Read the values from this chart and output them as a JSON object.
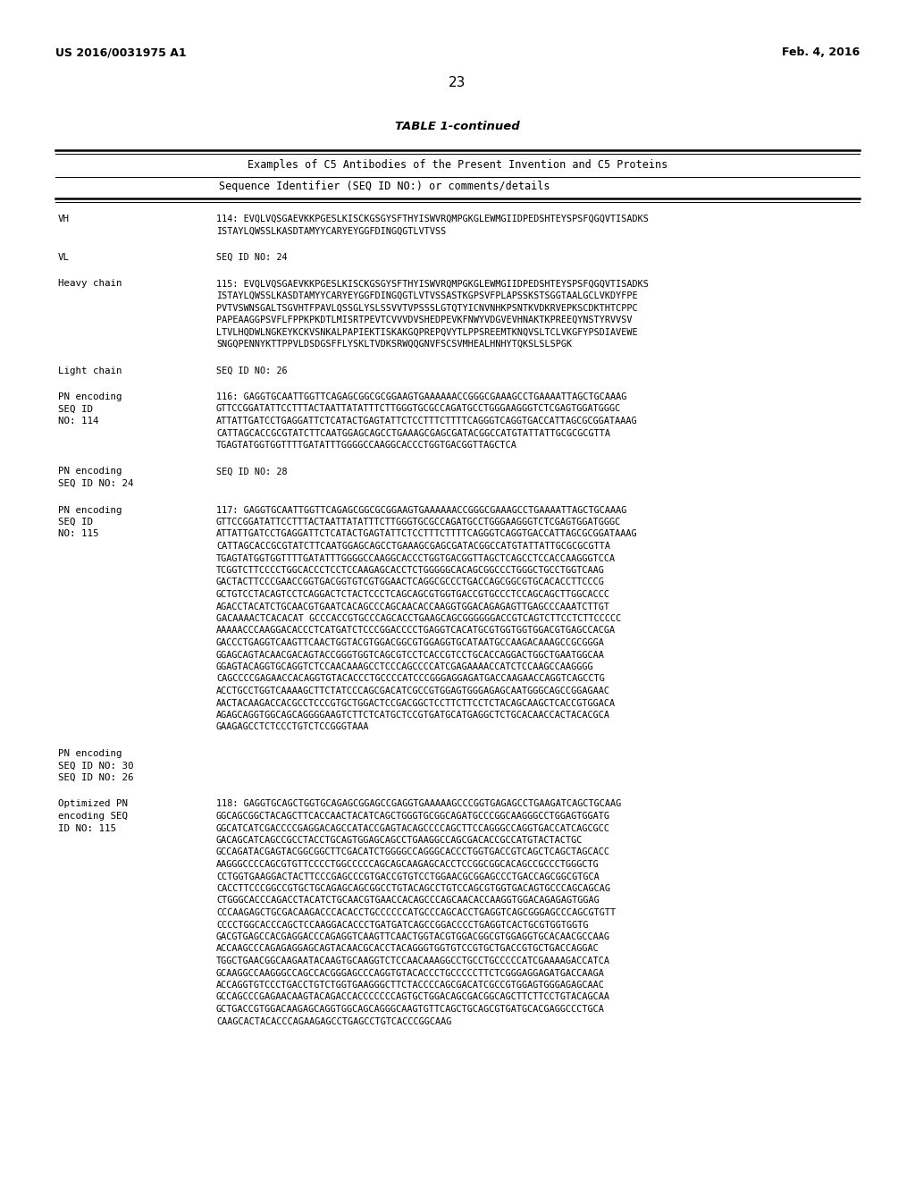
{
  "background_color": "#ffffff",
  "header_left": "US 2016/0031975 A1",
  "header_right": "Feb. 4, 2016",
  "page_number": "23",
  "table_title": "TABLE 1-continued",
  "table_subtitle": "Examples of C5 Antibodies of the Present Invention and C5 Proteins",
  "table_col_header": "Sequence Identifier (SEQ ID NO:) or comments/details",
  "blocks": [
    {
      "label": "VH",
      "content": "114: EVQLVQSGAEVKKPGESLKISCKGSGYSFTHYISWVRQMPGKGLEWMGIIDPEDSHTEYSPSFQGQVTISADKS\nISTAYLQWSSLKASDTAMYYCARYEYGGFDINGQGTLVTVSS"
    },
    {
      "label": "VL",
      "content": "SEQ ID NO: 24"
    },
    {
      "label": "Heavy chain",
      "content": "115: EVQLVQSGAEVKKPGESLKISCKGSGYSFTHYISWVRQMPGKGLEWMGIIDPEDSHTEYSPSFQGQVTISADKS\nISTAYLQWSSLKASDTAMYYCARYEYGGFDINGQGTLVTVSSASTKGPSVFPLAPSSKSTSGGTAALGCLVKDYFPE\nPVTVSWNSGALTSGVHTFPAVLQSSGLYSLSSVVTVPSSSLGTQTYICNVNHKPSNTKVDKRVEPKSCDKTHTCPPC\nPAPEAAGGPSVFLFPPKPKDTLMISRTPEVTCVVVDVSHEDPEVKFNWYVDGVEVHNAKTKPREEQYNSTYRVVSV\nLTVLHQDWLNGKEYKCKVSNKALPAPIEKTISKAKGQPREPQVYTLPPSREEMTKNQVSLTCLVKGFYPSDIAVEWE\nSNGQPENNYKTTPPVLDSDGSFFLYSKLTVDKSRWQQGNVFSCSVMHEALHNHYTQKSLSLSPGK"
    },
    {
      "label": "Light chain",
      "content": "SEQ ID NO: 26"
    },
    {
      "label": "PN encoding\nSEQ ID\nNO: 114",
      "content": "116: GAGGTGCAATTGGTTCAGAGCGGCGCGGAAGTGAAAAAACCGGGCGAAAGCCTGAAAATTAGCTGCAAAG\nGTTCCGGATATTCCTTTACTAATTATATTTCTTGGGTGCGCCAGATGCCTGGGAAGGGTCTCGAGTGGATGGGC\nATTATTGATCCTGAGGATTCTCATACTGAGTATTCTCCTTTCTTTTCAGGGTCAGGTGACCATTAGCGCGGATAAAG\nCATTAGCACCGCGTATCTTCAATGGAGCAGCCTGAAAGCGAGCGATACGGCCATGTATTATTGCGCGCGTTA\nTGAGTATGGTGGTTTTGATATTTGGGGCCAAGGCACCCTGGTGACGGTTAGCTCA"
    },
    {
      "label": "PN encoding\nSEQ ID NO: 24",
      "content": "SEQ ID NO: 28"
    },
    {
      "label": "PN encoding\nSEQ ID\nNO: 115",
      "content": "117: GAGGTGCAATTGGTTCAGAGCGGCGCGGAAGTGAAAAAACCGGGCGAAAGCCTGAAAATTAGCTGCAAAG\nGTTCCGGATATTCCTTTACTAATTATATTTCTTGGGTGCGCCAGATGCCTGGGAAGGGTCTCGAGTGGATGGGC\nATTATTGATCCTGAGGATTCTCATACTGAGTATTCTCCTTTCTTTTCAGGGTCAGGTGACCATTAGCGCGGATAAAG\nCATTAGCACCGCGTATCTTCAATGGAGCAGCCTGAAAGCGAGCGATACGGCCATGTATTATTGCGCGCGTTA\nTGAGTATGGTGGTTTTGATATTTGGGGCCAAGGCACCCTGGTGACGGTTAGCTCAGCCTCCACCAAGGGTCCA\nTCGGTCTTCCCCTGGCACCCTCCTCCAAGAGCACCTCTGGGGGCACAGCGGCCCTGGGCTGCCTGGTCAAG\nGACTACTTCCCGAACCGGTGACGGTGTCGTGGAACTCAGGCGCCCTGACCAGCGGCGTGCACACCTTCCCG\nGCTGTCCTACAGTCCTCAGGACTCTACTCCCTCAGCAGCGTGGTGACCGTGCCCTCCAGCAGCTTGGCACCC\nAGACCTACATCTGCAACGTGAATCACAGCCCAGCAACACCAAGGTGGACAGAGAGTTGAGCCCAAATCTTGT\nGACAAAACTCACACAT GCCCACCGTGCCCAGCACCTGAAGCAGCGGGGGGACCGTCAGTCTTCCTCTTCCCCC\nAAAAACCCAAGGACACCCTCATGATCTCCCGGACCCCTGAGGTCACATGCGTGGTGGTGGACGTGAGCCACGA\nGACCCTGAGGTCAAGTTCAACTGGTACGTGGACGGCGTGGAGGTGCATAATGCCAAGACAAAGCCGCGGGA\nGGAGCAGTACAACGACAGTACCGGGTGGTCAGCGTCCTCACCGTCCTGCACCAGGACTGGCTGAATGGCAA\nGGAGTACAGGTGCAGGTCTCCAACAAAGCCTCCCAGCCCCATCGAGAAAACCATCTCCAAGCCAAGGGG\nCAGCCCCGAGAACCACAGGTGTACACCCTGCCCCATCCCGGGAGGAGATGACCAAGAACCAGGTCAGCCTG\nACCTGCCTGGTCAAAAGCTTCTATCCCAGCGACATCGCCGTGGAGTGGGAGAGCAATGGGCAGCCGGAGAAC\nAACTACAAGACCACGCCTCCCGTGCTGGACTCCGACGGCTCCTTCTTCCTCTACAGCAAGCTCACCGTGGACA\nAGAGCAGGTGGCAGCAGGGGAAGTCTTCTCATGCTCCGTGATGCATGAGGCTCTGCACAACCACTACACGCA\nGAAGAGCCTCTCCCTGTCTCCGGGTAAA"
    },
    {
      "label": "PN encoding\nSEQ ID NO: 30\nSEQ ID NO: 26",
      "content": ""
    },
    {
      "label": "Optimized PN\nencoding SEQ\nID NO: 115",
      "content": "118: GAGGTGCAGCTGGTGCAGAGCGGAGCCGAGGTGAAAAAGCCCGGTGAGAGCCTGAAGATCAGCTGCAAG\nGGCAGCGGCTACAGCTTCACCAACTACATCAGCTGGGTGCGGCAGATGCCCGGCAAGGGCCTGGAGTGGATG\nGGCATCATCGACCCCGAGGACAGCCATACCGAGTACAGCCCCAGCTTCCAGGGCCAGGTGACCATCAGCGCC\nGACAGCATCAGCCGCCTACCTGCAGTGGAGCAGCCTGAAGGCCAGCGACACCGCCATGTACTACTGC\nGCCAGATACGAGTACGGCGGCTTCGACATCTGGGGCCAGGGCACCCTGGTGACCGTCAGCTCAGCTAGCACC\nAAGGGCCCCAGCGTGTTCCCCTGGCCCCCAGCAGCAAGAGCACCTCCGGCGGCACAGCCGCCCTGGGCTG\nCCTGGTGAAGGACTACTTCCCGAGCCCGTGACCGTGTCCTGGAACGCGGAGCCCTGACCAGCGGCGTGCA\nCACCTTCCCGGCCGTGCTGCAGAGCAGCGGCCTGTACAGCCTGTCCAGCGTGGTGACAGTGCCCAGCAGCAG\nCTGGGCACCCAGACCTACATCTGCAACGTGAACCACAGCCCAGCAACACCAAGGTGGACAGAGAGTGGAG\nCCCAAGAGCTGCGACAAGACCCACACCTGCCCCCCATGCCCAGCACCTGAGGTCAGCGGGAGCCCAGCGTGTT\nCCCCTGGCACCCAGCTCCAAGGACACCCTGATGATCAGCCGGACCCCTGAGGTCACTGCGTGGTGGTG\nGACGTGAGCCACGAGGACCCAGAGGTCAAGTTCAACTGGTACGTGGACGGCGTGGAGGTGCACAACGCCAAG\nACCAAGCCCAGAGAGGAGCAGTACAACGCACCTACAGGGTGGTGTCCGTGCTGACCGTGCTGACCAGGAC\nTGGCTGAACGGCAAGAATACAAGTGCAAGGTCTCCAACAAAGGCCTGCCTGCCCCCATCGAAAAGACCATCA\nGCAAGGCCAAGGGCCAGCCACGGGAGCCCAGGTGTACACCCTGCCCCCTTCTCGGGAGGAGATGACCAAGA\nACCAGGTGTCCCTGACCTGTCTGGTGAAGGGCTTCTACCCCAGCGACATCGCCGTGGAGTGGGAGAGCAAC\nGCCAGCCCGAGAACAAGTACAGACCACCCCCCCAGTGCTGGACAGCGACGGCAGCTTCTTCCTGTACAGCAA\nGCTGACCGTGGACAAGAGCAGGTGGCAGCAGGGCAAGTGTTCAGCTGCAGCGTGATGCACGAGGCCCTGCA\nCAAGCACTACACCCAGAAGAGCCTGAGCCTGTCACCCGGCAAG"
    }
  ]
}
